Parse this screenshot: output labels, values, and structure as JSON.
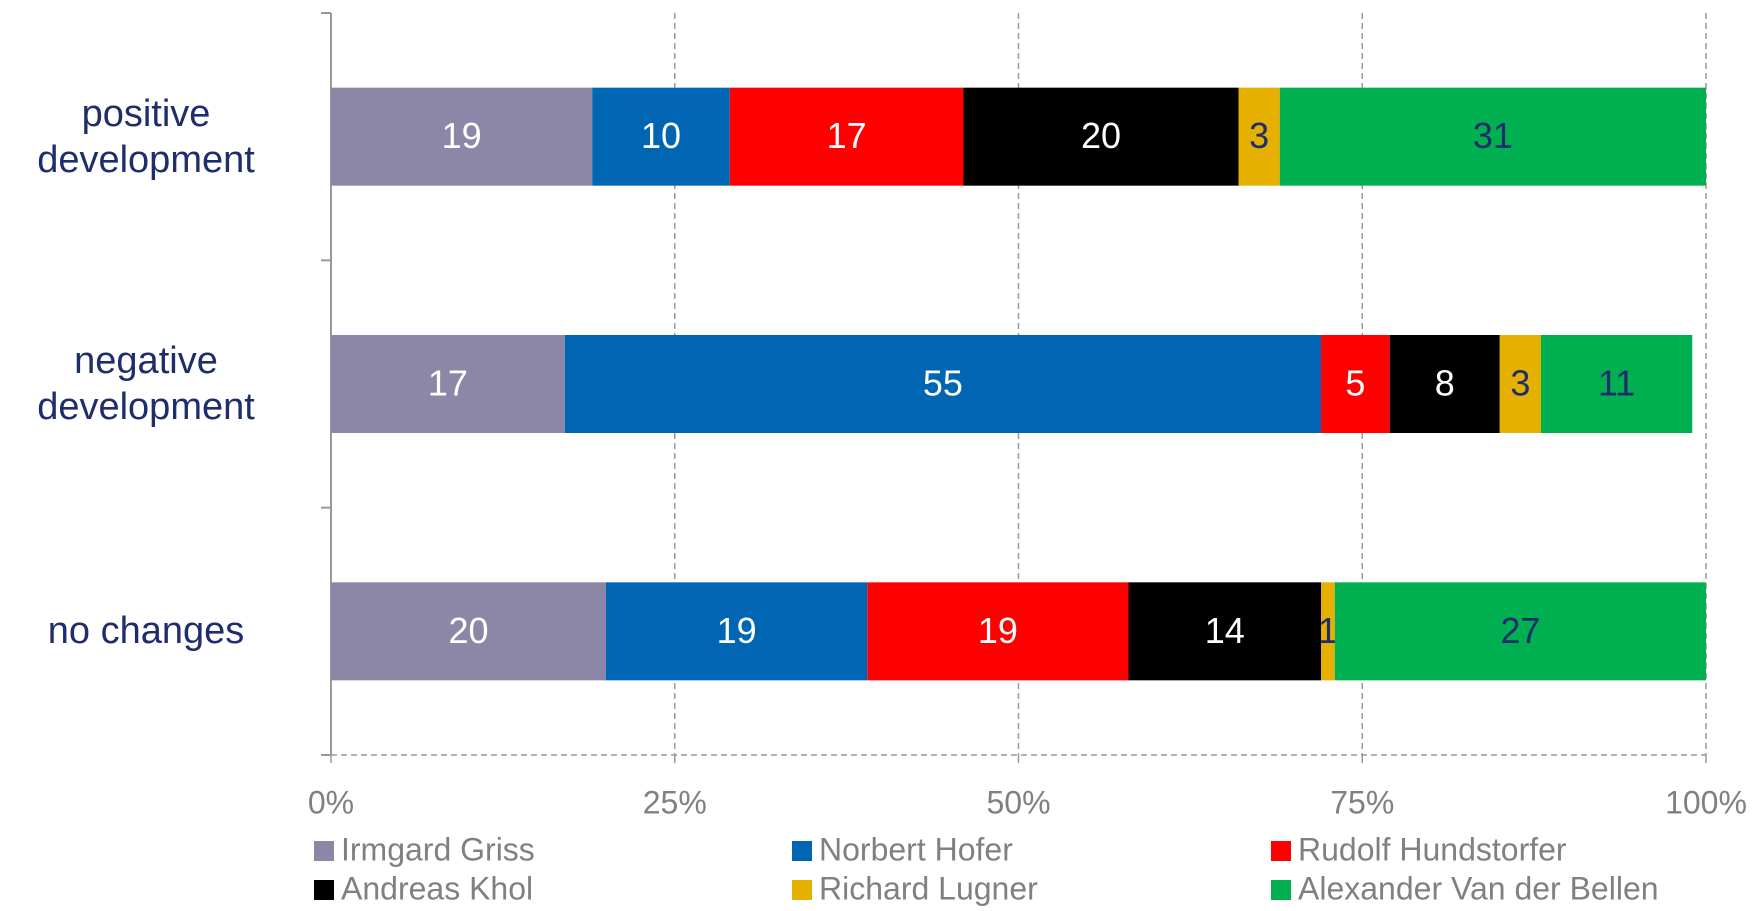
{
  "chart_data": {
    "type": "stacked_bar_horizontal",
    "categories": [
      "positive development",
      "negative development",
      "no changes"
    ],
    "series": [
      {
        "name": "Irmgard Griss",
        "color": "#8c87a6",
        "label_color": "#ffffff",
        "values": [
          19,
          17,
          20
        ]
      },
      {
        "name": "Norbert Hofer",
        "color": "#0066b3",
        "label_color": "#ffffff",
        "values": [
          10,
          55,
          19
        ]
      },
      {
        "name": "Rudolf Hundstorfer",
        "color": "#ff0000",
        "label_color": "#ffffff",
        "values": [
          17,
          5,
          19
        ]
      },
      {
        "name": "Andreas Khol",
        "color": "#000000",
        "label_color": "#ffffff",
        "values": [
          20,
          8,
          14
        ]
      },
      {
        "name": "Richard Lugner",
        "color": "#e6b000",
        "label_color": "#1f2d6b",
        "values": [
          3,
          3,
          1
        ]
      },
      {
        "name": "Alexander Van der Bellen",
        "color": "#00b050",
        "label_color": "#1f2d6b",
        "values": [
          31,
          11,
          27
        ]
      }
    ],
    "xlim": [
      0,
      100
    ],
    "xticks": [
      {
        "value": 0,
        "label": "0%"
      },
      {
        "value": 25,
        "label": "25%"
      },
      {
        "value": 50,
        "label": "50%"
      },
      {
        "value": 75,
        "label": "75%"
      },
      {
        "value": 100,
        "label": "100%"
      }
    ],
    "grid": true,
    "legend": "bottom"
  }
}
